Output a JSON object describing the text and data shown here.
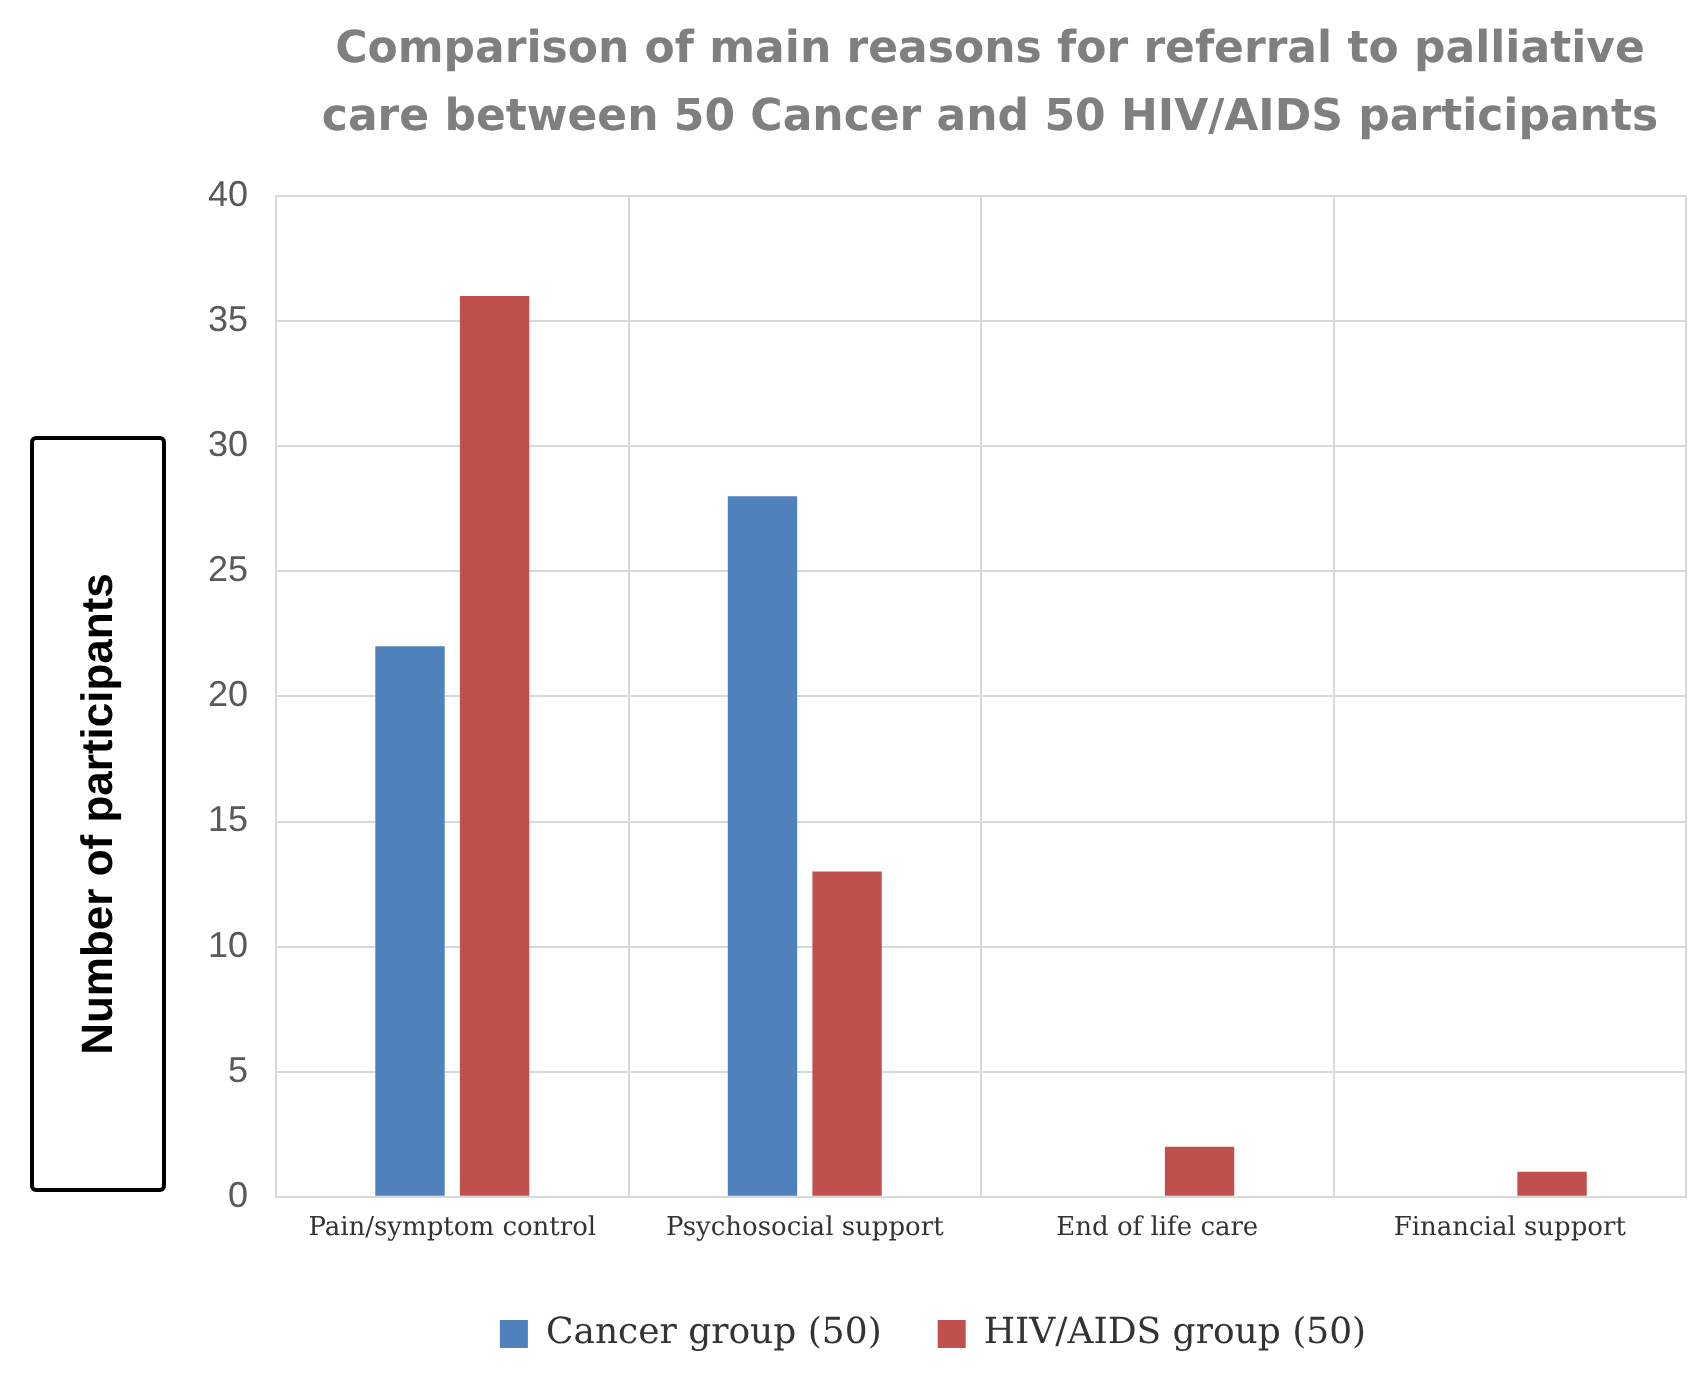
{
  "chart_data": {
    "type": "bar",
    "title": "Comparison of main reasons for referral to palliative care between 50 Cancer and 50 HIV/AIDS participants",
    "ylabel": "Number of participants",
    "categories": [
      "Pain/symptom control",
      "Psychosocial support",
      "End of life care",
      "Financial support"
    ],
    "series": [
      {
        "name": "Cancer group (50)",
        "color": "#4f81bd",
        "values": [
          22,
          28,
          0,
          0
        ]
      },
      {
        "name": "HIV/AIDS group (50)",
        "color": "#c0504d",
        "values": [
          36,
          13,
          2,
          1
        ]
      }
    ],
    "ylim": [
      0,
      40
    ],
    "yticks": [
      0,
      5,
      10,
      15,
      20,
      25,
      30,
      35,
      40
    ],
    "grid": true,
    "legend": "bottom"
  }
}
